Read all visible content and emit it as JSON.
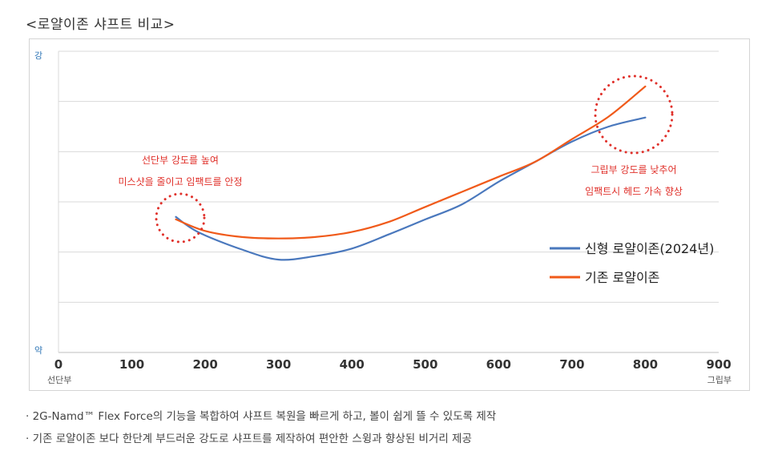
{
  "title": "<로얄이존 샤프트 비교>",
  "chart_data": {
    "type": "line",
    "xlim": [
      0,
      900
    ],
    "x_ticks": [
      0,
      100,
      200,
      300,
      400,
      500,
      600,
      700,
      800,
      900
    ],
    "x_tick_labels": [
      "0",
      "100",
      "200",
      "300",
      "400",
      "500",
      "600",
      "700",
      "800",
      "900"
    ],
    "x_end_labels": {
      "left": "선단부",
      "right": "그립부"
    },
    "y_end_labels": {
      "top": "강",
      "bottom": "약"
    },
    "ylim": [
      0,
      6
    ],
    "grid": true,
    "legend_position": "right",
    "series": [
      {
        "name": "신형 로얄이존(2024년)",
        "color": "#4a78bd",
        "x": [
          160,
          190,
          250,
          300,
          350,
          400,
          450,
          500,
          550,
          600,
          650,
          700,
          750,
          800
        ],
        "y": [
          2.7,
          2.4,
          2.05,
          1.85,
          1.92,
          2.07,
          2.35,
          2.65,
          2.95,
          3.4,
          3.8,
          4.2,
          4.5,
          4.68
        ]
      },
      {
        "name": "기존 로얄이존",
        "color": "#f05a1a",
        "x": [
          160,
          200,
          250,
          300,
          350,
          400,
          450,
          500,
          550,
          600,
          650,
          700,
          750,
          800
        ],
        "y": [
          2.65,
          2.42,
          2.3,
          2.27,
          2.3,
          2.4,
          2.6,
          2.9,
          3.2,
          3.5,
          3.8,
          4.25,
          4.7,
          5.3
        ]
      }
    ],
    "annotations": [
      {
        "lines": [
          "선단부 강도를 높여",
          "미스샷을 줄이고 임팩트를 안정"
        ],
        "color": "#e0312b",
        "circle_at": [
          165,
          2.65
        ]
      },
      {
        "lines": [
          "그립부 강도를 낮추어",
          "임팩트시 헤드 가속 향상"
        ],
        "color": "#e0312b",
        "circle_at": [
          785,
          5.0
        ]
      }
    ]
  },
  "notes": [
    "· 2G-Namd™ Flex Force의 기능을 복합하여 샤프트 복원을 빠르게 하고, 볼이 쉽게 뜰 수 있도록 제작",
    "· 기존 로얄이존 보다 한단계 부드러운 강도로 샤프트를 제작하여 편안한 스윙과 향상된 비거리 제공"
  ]
}
